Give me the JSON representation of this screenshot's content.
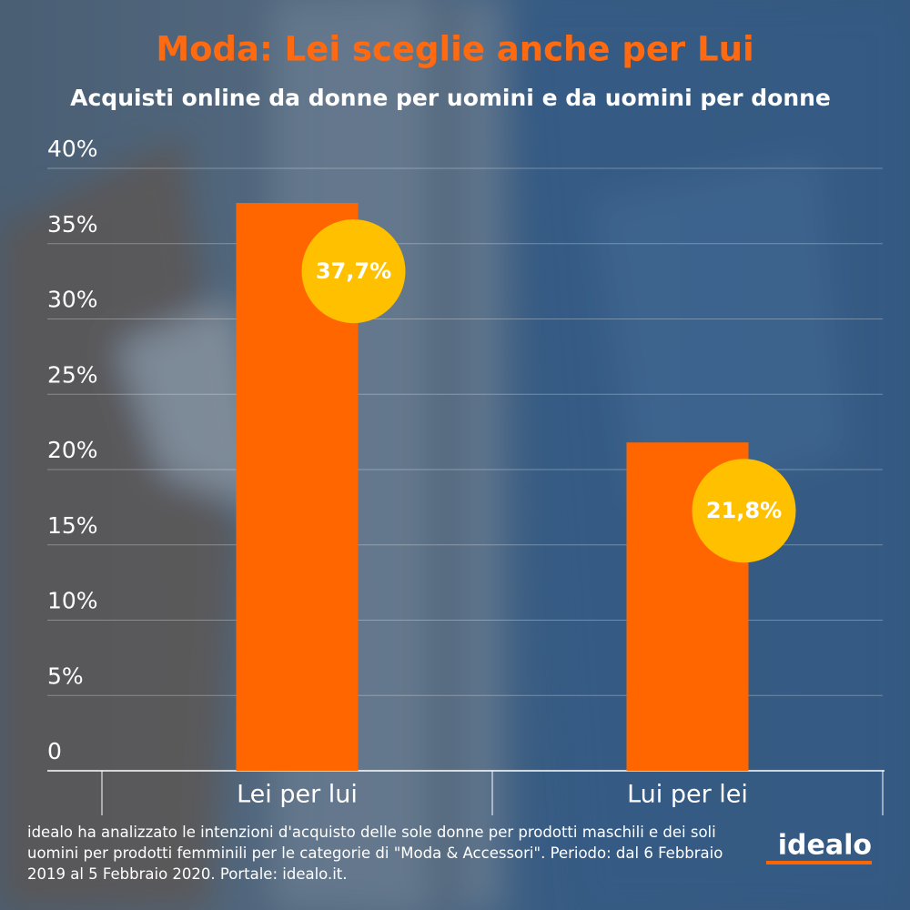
{
  "chart_data": {
    "type": "bar",
    "title": "Moda: Lei sceglie anche per Lui",
    "subtitle": "Acquisti online da donne per uomini e da uomini per donne",
    "categories": [
      "Lei per lui",
      "Lui per lei"
    ],
    "values": [
      37.7,
      21.8
    ],
    "value_labels": [
      "37,7%",
      "21,8%"
    ],
    "color": "#ff6600",
    "label_color": "#ffc000",
    "ylim": [
      0,
      40
    ],
    "yticks": [
      0,
      {
        "value": 5,
        "label": "5%"
      },
      {
        "value": 10,
        "label": "10%"
      },
      {
        "value": 15,
        "label": "15%"
      },
      {
        "value": 20,
        "label": "20%"
      },
      {
        "value": 25,
        "label": "25%"
      },
      {
        "value": 30,
        "label": "30%"
      },
      {
        "value": 35,
        "label": "35%"
      },
      {
        "value": 40,
        "label": "40%"
      }
    ],
    "grid": true,
    "footnote": "idealo ha analizzato le intenzioni d'acquisto delle sole donne per prodotti maschili e dei soli uomini per prodotti femminili per le categorie di \"Moda & Accessori\". Periodo: dal 6 Febbraio 2019 al 5 Febbraio 2020. Portale: idealo.it.",
    "logo": "idealo"
  }
}
